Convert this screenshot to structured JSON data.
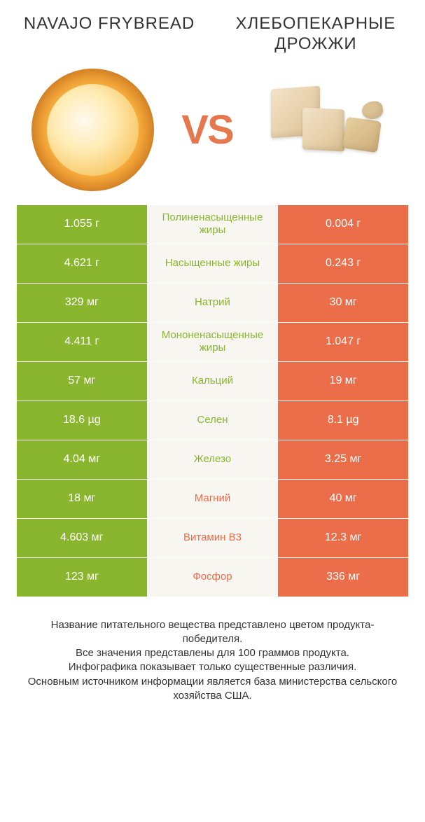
{
  "colors": {
    "left_bg": "#8ab52f",
    "right_bg": "#ec6d4a",
    "mid_bg": "#f8f6f0",
    "left_text": "#8ab52f",
    "right_text": "#ec6d4a",
    "cell_text": "#ffffff"
  },
  "header": {
    "left_title": "NAVAJO FRYBREAD",
    "right_title": "ХЛЕБОПЕКАРНЫЕ ДРОЖЖИ",
    "vs": "VS"
  },
  "rows": [
    {
      "left": "1.055 г",
      "label": "Полиненасыщенные жиры",
      "right": "0.004 г",
      "winner": "left"
    },
    {
      "left": "4.621 г",
      "label": "Насыщенные жиры",
      "right": "0.243 г",
      "winner": "left"
    },
    {
      "left": "329 мг",
      "label": "Натрий",
      "right": "30 мг",
      "winner": "left"
    },
    {
      "left": "4.411 г",
      "label": "Мононенасыщенные жиры",
      "right": "1.047 г",
      "winner": "left"
    },
    {
      "left": "57 мг",
      "label": "Кальций",
      "right": "19 мг",
      "winner": "left"
    },
    {
      "left": "18.6 µg",
      "label": "Селен",
      "right": "8.1 µg",
      "winner": "left"
    },
    {
      "left": "4.04 мг",
      "label": "Железо",
      "right": "3.25 мг",
      "winner": "left"
    },
    {
      "left": "18 мг",
      "label": "Магний",
      "right": "40 мг",
      "winner": "right"
    },
    {
      "left": "4.603 мг",
      "label": "Витамин B3",
      "right": "12.3 мг",
      "winner": "right"
    },
    {
      "left": "123 мг",
      "label": "Фосфор",
      "right": "336 мг",
      "winner": "right"
    }
  ],
  "footer": {
    "line1": "Название питательного вещества представлено цветом продукта-победителя.",
    "line2": "Все значения представлены для 100 граммов продукта.",
    "line3": "Инфографика показывает только существенные различия.",
    "line4": "Основным источником информации является база министерства сельского хозяйства США."
  }
}
